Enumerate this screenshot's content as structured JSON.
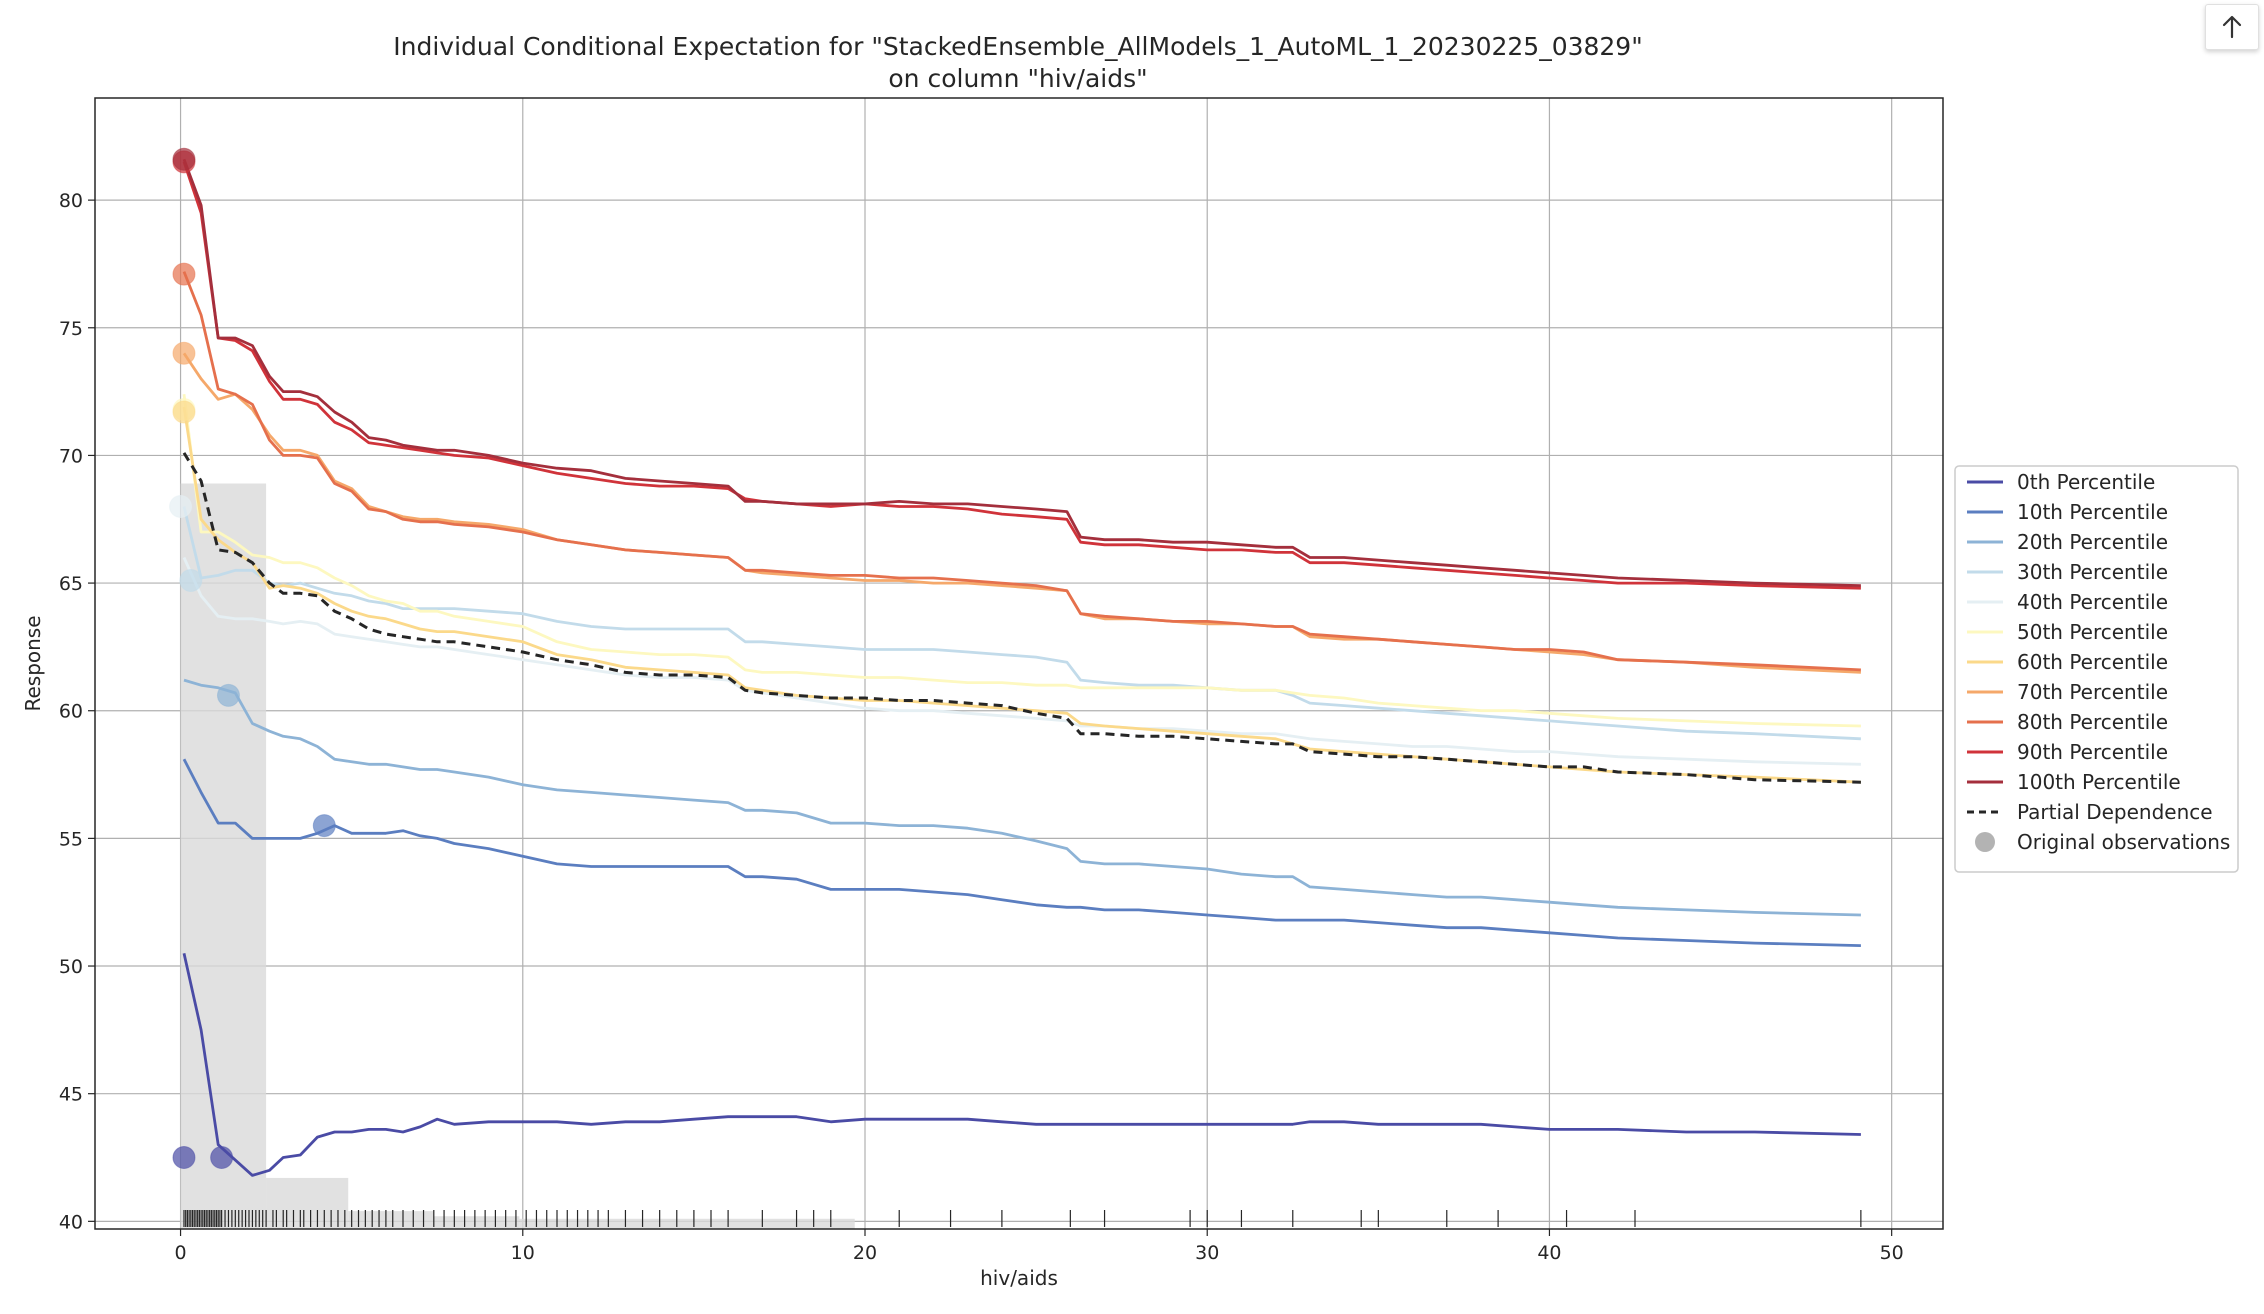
{
  "toolbar": {
    "scroll_top_icon": "arrow-up-icon"
  },
  "chart_data": {
    "type": "line",
    "title": "Individual Conditional Expectation for \"StackedEnsemble_AllModels_1_AutoML_1_20230225_03829\"",
    "subtitle": "on column \"hiv/aids\"",
    "xlabel": "hiv/aids",
    "ylabel": "Response",
    "xlim": [
      -2.5,
      51.5
    ],
    "ylim": [
      39.7,
      84.0
    ],
    "xticks": [
      0,
      10,
      20,
      30,
      40,
      50
    ],
    "yticks": [
      40,
      45,
      50,
      55,
      60,
      65,
      70,
      75,
      80
    ],
    "grid": true,
    "legend_position": "center-right, outside plot",
    "x": [
      0.1,
      0.6,
      1.1,
      1.6,
      2.1,
      2.6,
      3.0,
      3.5,
      4.0,
      4.5,
      5.0,
      5.5,
      6.0,
      6.5,
      7.0,
      7.5,
      8.0,
      9.0,
      10.0,
      11.0,
      12.0,
      13.0,
      14.0,
      15.0,
      16.0,
      16.5,
      17.0,
      18.0,
      19.0,
      20.0,
      21.0,
      22.0,
      23.0,
      24.0,
      25.0,
      25.9,
      26.3,
      27.0,
      28.0,
      29.0,
      30.0,
      31.0,
      32.0,
      32.5,
      33.0,
      34.0,
      35.0,
      36.0,
      37.0,
      38.0,
      39.0,
      40.0,
      41.0,
      42.0,
      44.0,
      46.0,
      49.1
    ],
    "series": [
      {
        "name": "0th Percentile",
        "color": "#4a4ba5",
        "values": [
          50.5,
          47.5,
          43.0,
          42.4,
          41.8,
          42.0,
          42.5,
          42.6,
          43.3,
          43.5,
          43.5,
          43.6,
          43.6,
          43.5,
          43.7,
          44.0,
          43.8,
          43.9,
          43.9,
          43.9,
          43.8,
          43.9,
          43.9,
          44.0,
          44.1,
          44.1,
          44.1,
          44.1,
          43.9,
          44.0,
          44.0,
          44.0,
          44.0,
          43.9,
          43.8,
          43.8,
          43.8,
          43.8,
          43.8,
          43.8,
          43.8,
          43.8,
          43.8,
          43.8,
          43.9,
          43.9,
          43.8,
          43.8,
          43.8,
          43.8,
          43.7,
          43.6,
          43.6,
          43.6,
          43.5,
          43.5,
          43.4
        ]
      },
      {
        "name": "10th Percentile",
        "color": "#5b7ec0",
        "values": [
          58.1,
          56.8,
          55.6,
          55.6,
          55.0,
          55.0,
          55.0,
          55.0,
          55.2,
          55.5,
          55.2,
          55.2,
          55.2,
          55.3,
          55.1,
          55.0,
          54.8,
          54.6,
          54.3,
          54.0,
          53.9,
          53.9,
          53.9,
          53.9,
          53.9,
          53.5,
          53.5,
          53.4,
          53.0,
          53.0,
          53.0,
          52.9,
          52.8,
          52.6,
          52.4,
          52.3,
          52.3,
          52.2,
          52.2,
          52.1,
          52.0,
          51.9,
          51.8,
          51.8,
          51.8,
          51.8,
          51.7,
          51.6,
          51.5,
          51.5,
          51.4,
          51.3,
          51.2,
          51.1,
          51.0,
          50.9,
          50.8
        ]
      },
      {
        "name": "20th Percentile",
        "color": "#8db3d6",
        "values": [
          61.2,
          61.0,
          60.9,
          60.7,
          59.5,
          59.2,
          59.0,
          58.9,
          58.6,
          58.1,
          58.0,
          57.9,
          57.9,
          57.8,
          57.7,
          57.7,
          57.6,
          57.4,
          57.1,
          56.9,
          56.8,
          56.7,
          56.6,
          56.5,
          56.4,
          56.1,
          56.1,
          56.0,
          55.6,
          55.6,
          55.5,
          55.5,
          55.4,
          55.2,
          54.9,
          54.6,
          54.1,
          54.0,
          54.0,
          53.9,
          53.8,
          53.6,
          53.5,
          53.5,
          53.1,
          53.0,
          52.9,
          52.8,
          52.7,
          52.7,
          52.6,
          52.5,
          52.4,
          52.3,
          52.2,
          52.1,
          52.0
        ]
      },
      {
        "name": "30th Percentile",
        "color": "#c2dbea",
        "values": [
          68.0,
          65.2,
          65.3,
          65.5,
          65.5,
          65.0,
          64.9,
          65.0,
          64.8,
          64.6,
          64.5,
          64.3,
          64.2,
          64.0,
          64.0,
          64.0,
          64.0,
          63.9,
          63.8,
          63.5,
          63.3,
          63.2,
          63.2,
          63.2,
          63.2,
          62.7,
          62.7,
          62.6,
          62.5,
          62.4,
          62.4,
          62.4,
          62.3,
          62.2,
          62.1,
          61.9,
          61.2,
          61.1,
          61.0,
          61.0,
          60.9,
          60.8,
          60.8,
          60.6,
          60.3,
          60.2,
          60.1,
          60.0,
          59.9,
          59.8,
          59.7,
          59.6,
          59.5,
          59.4,
          59.2,
          59.1,
          58.9
        ]
      },
      {
        "name": "40th Percentile",
        "color": "#e5eff3",
        "values": [
          66.0,
          64.5,
          63.7,
          63.6,
          63.6,
          63.5,
          63.4,
          63.5,
          63.4,
          63.0,
          62.9,
          62.8,
          62.7,
          62.6,
          62.5,
          62.5,
          62.4,
          62.2,
          62.0,
          61.8,
          61.6,
          61.4,
          61.3,
          61.3,
          61.2,
          60.8,
          60.7,
          60.5,
          60.3,
          60.1,
          60.0,
          60.0,
          59.9,
          59.8,
          59.7,
          59.6,
          59.4,
          59.4,
          59.3,
          59.3,
          59.2,
          59.1,
          59.1,
          59.0,
          58.9,
          58.8,
          58.7,
          58.6,
          58.6,
          58.5,
          58.4,
          58.4,
          58.3,
          58.2,
          58.1,
          58.0,
          57.9
        ]
      },
      {
        "name": "50th Percentile",
        "color": "#fdf8c0",
        "values": [
          72.4,
          67.0,
          67.0,
          66.6,
          66.1,
          66.0,
          65.8,
          65.8,
          65.6,
          65.2,
          64.9,
          64.5,
          64.3,
          64.2,
          63.9,
          63.9,
          63.7,
          63.5,
          63.3,
          62.7,
          62.4,
          62.3,
          62.2,
          62.2,
          62.1,
          61.6,
          61.5,
          61.5,
          61.4,
          61.3,
          61.3,
          61.2,
          61.1,
          61.1,
          61.0,
          61.0,
          60.9,
          60.9,
          60.9,
          60.9,
          60.9,
          60.8,
          60.8,
          60.7,
          60.6,
          60.5,
          60.3,
          60.2,
          60.1,
          60.0,
          60.0,
          59.9,
          59.8,
          59.7,
          59.6,
          59.5,
          59.4
        ]
      },
      {
        "name": "60th Percentile",
        "color": "#fbd98a",
        "values": [
          71.9,
          67.5,
          66.7,
          66.2,
          65.8,
          64.8,
          64.9,
          64.8,
          64.6,
          64.2,
          63.9,
          63.7,
          63.6,
          63.4,
          63.2,
          63.1,
          63.1,
          62.9,
          62.7,
          62.2,
          62.0,
          61.7,
          61.6,
          61.5,
          61.4,
          60.9,
          60.8,
          60.6,
          60.5,
          60.4,
          60.4,
          60.3,
          60.2,
          60.1,
          60.0,
          59.9,
          59.5,
          59.4,
          59.3,
          59.2,
          59.1,
          59.0,
          58.9,
          58.7,
          58.5,
          58.4,
          58.3,
          58.2,
          58.1,
          58.0,
          57.9,
          57.8,
          57.7,
          57.6,
          57.5,
          57.4,
          57.2
        ]
      },
      {
        "name": "70th Percentile",
        "color": "#f5a86a",
        "values": [
          74.0,
          73.0,
          72.2,
          72.4,
          71.8,
          70.8,
          70.2,
          70.2,
          70.0,
          69.0,
          68.7,
          68.0,
          67.8,
          67.6,
          67.5,
          67.5,
          67.4,
          67.3,
          67.1,
          66.7,
          66.5,
          66.3,
          66.2,
          66.1,
          66.0,
          65.5,
          65.4,
          65.3,
          65.2,
          65.1,
          65.1,
          65.0,
          65.0,
          64.9,
          64.8,
          64.7,
          63.8,
          63.6,
          63.6,
          63.5,
          63.4,
          63.4,
          63.3,
          63.3,
          62.9,
          62.8,
          62.8,
          62.7,
          62.6,
          62.5,
          62.4,
          62.3,
          62.2,
          62.0,
          61.9,
          61.7,
          61.5
        ]
      },
      {
        "name": "80th Percentile",
        "color": "#e5704d",
        "values": [
          77.2,
          75.5,
          72.6,
          72.4,
          72.0,
          70.6,
          70.0,
          70.0,
          69.9,
          68.9,
          68.6,
          67.9,
          67.8,
          67.5,
          67.4,
          67.4,
          67.3,
          67.2,
          67.0,
          66.7,
          66.5,
          66.3,
          66.2,
          66.1,
          66.0,
          65.5,
          65.5,
          65.4,
          65.3,
          65.3,
          65.2,
          65.2,
          65.1,
          65.0,
          64.9,
          64.7,
          63.8,
          63.7,
          63.6,
          63.5,
          63.5,
          63.4,
          63.3,
          63.3,
          63.0,
          62.9,
          62.8,
          62.7,
          62.6,
          62.5,
          62.4,
          62.4,
          62.3,
          62.0,
          61.9,
          61.8,
          61.6
        ]
      },
      {
        "name": "90th Percentile",
        "color": "#d0333a",
        "values": [
          81.5,
          79.5,
          74.6,
          74.5,
          74.1,
          72.9,
          72.2,
          72.2,
          72.0,
          71.3,
          71.0,
          70.5,
          70.4,
          70.3,
          70.2,
          70.1,
          70.0,
          69.9,
          69.6,
          69.3,
          69.1,
          68.9,
          68.8,
          68.8,
          68.7,
          68.3,
          68.2,
          68.1,
          68.0,
          68.1,
          68.0,
          68.0,
          67.9,
          67.7,
          67.6,
          67.5,
          66.6,
          66.5,
          66.5,
          66.4,
          66.3,
          66.3,
          66.2,
          66.2,
          65.8,
          65.8,
          65.7,
          65.6,
          65.5,
          65.4,
          65.3,
          65.2,
          65.1,
          65.0,
          65.0,
          64.9,
          64.8
        ]
      },
      {
        "name": "100th Percentile",
        "color": "#a42f3c",
        "values": [
          81.6,
          79.8,
          74.6,
          74.6,
          74.3,
          73.1,
          72.5,
          72.5,
          72.3,
          71.7,
          71.3,
          70.7,
          70.6,
          70.4,
          70.3,
          70.2,
          70.2,
          70.0,
          69.7,
          69.5,
          69.4,
          69.1,
          69.0,
          68.9,
          68.8,
          68.2,
          68.2,
          68.1,
          68.1,
          68.1,
          68.2,
          68.1,
          68.1,
          68.0,
          67.9,
          67.8,
          66.8,
          66.7,
          66.7,
          66.6,
          66.6,
          66.5,
          66.4,
          66.4,
          66.0,
          66.0,
          65.9,
          65.8,
          65.7,
          65.6,
          65.5,
          65.4,
          65.3,
          65.2,
          65.1,
          65.0,
          64.9
        ]
      },
      {
        "name": "Partial Dependence",
        "color": "#262626",
        "dashed": true,
        "values": [
          70.1,
          69.0,
          66.3,
          66.2,
          65.8,
          65.0,
          64.6,
          64.6,
          64.5,
          63.9,
          63.6,
          63.2,
          63.0,
          62.9,
          62.8,
          62.7,
          62.7,
          62.5,
          62.3,
          62.0,
          61.8,
          61.5,
          61.4,
          61.4,
          61.3,
          60.8,
          60.7,
          60.6,
          60.5,
          60.5,
          60.4,
          60.4,
          60.3,
          60.2,
          59.9,
          59.7,
          59.1,
          59.1,
          59.0,
          59.0,
          58.9,
          58.8,
          58.7,
          58.7,
          58.4,
          58.3,
          58.2,
          58.2,
          58.1,
          58.0,
          57.9,
          57.8,
          57.8,
          57.6,
          57.5,
          57.3,
          57.2
        ]
      }
    ],
    "original_observations": {
      "name": "Original observations",
      "color": "#a0a0a0",
      "points": [
        {
          "x": 0.1,
          "y": 42.5,
          "color": "#4a4ba5"
        },
        {
          "x": 1.2,
          "y": 42.5,
          "color": "#4a4ba5"
        },
        {
          "x": 4.2,
          "y": 55.5,
          "color": "#5b7ec0"
        },
        {
          "x": 1.4,
          "y": 60.6,
          "color": "#8db3d6"
        },
        {
          "x": 0.3,
          "y": 65.1,
          "color": "#c2dbea"
        },
        {
          "x": 0.0,
          "y": 68.0,
          "color": "#e5eff3"
        },
        {
          "x": 0.1,
          "y": 71.8,
          "color": "#fdf8c0"
        },
        {
          "x": 0.1,
          "y": 71.7,
          "color": "#fbd98a"
        },
        {
          "x": 0.1,
          "y": 74.0,
          "color": "#f5a86a"
        },
        {
          "x": 0.1,
          "y": 77.1,
          "color": "#e5704d"
        },
        {
          "x": 0.1,
          "y": 81.5,
          "color": "#d0333a"
        },
        {
          "x": 0.1,
          "y": 81.6,
          "color": "#a42f3c"
        }
      ]
    },
    "histogram": {
      "bins": [
        [
          0.0,
          2.5,
          68.9
        ],
        [
          2.5,
          4.9,
          41.7
        ],
        [
          4.9,
          7.4,
          40.4
        ],
        [
          7.4,
          9.9,
          40.2
        ],
        [
          9.9,
          19.7,
          40.1
        ]
      ]
    },
    "rug": [
      0.1,
      0.15,
      0.2,
      0.25,
      0.3,
      0.35,
      0.4,
      0.45,
      0.5,
      0.55,
      0.6,
      0.65,
      0.7,
      0.75,
      0.8,
      0.85,
      0.9,
      0.95,
      1.0,
      1.05,
      1.1,
      1.15,
      1.2,
      1.3,
      1.4,
      1.5,
      1.6,
      1.7,
      1.8,
      1.9,
      2.0,
      2.1,
      2.2,
      2.3,
      2.4,
      2.5,
      2.7,
      2.8,
      3.0,
      3.1,
      3.3,
      3.5,
      3.6,
      3.8,
      4.0,
      4.2,
      4.4,
      4.6,
      4.8,
      5.0,
      5.2,
      5.4,
      5.6,
      5.8,
      6.0,
      6.2,
      6.5,
      6.8,
      7.1,
      7.4,
      7.7,
      8.0,
      8.3,
      8.6,
      8.9,
      9.2,
      9.5,
      9.8,
      10.1,
      10.4,
      10.7,
      11.0,
      11.3,
      11.6,
      11.9,
      12.2,
      12.5,
      13.0,
      13.5,
      14.0,
      14.5,
      15.0,
      15.5,
      16.0,
      17.0,
      18.0,
      18.5,
      19.0,
      21.0,
      22.5,
      24.0,
      26.0,
      27.0,
      29.5,
      30.0,
      31.0,
      32.5,
      34.5,
      35.0,
      37.0,
      38.5,
      40.5,
      42.5,
      49.1
    ]
  }
}
